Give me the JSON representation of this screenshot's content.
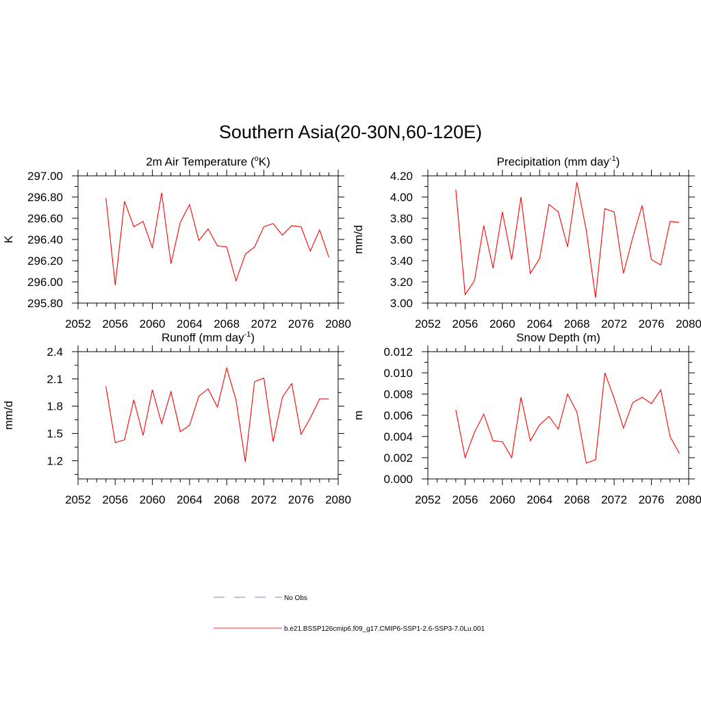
{
  "figure": {
    "title": "Southern Asia(20-30N,60-120E)"
  },
  "legend": {
    "entries": [
      {
        "label": "No Obs",
        "style": "dashed",
        "color": "#9999dd"
      },
      {
        "label": "b.e21.BSSP126cmip6.f09_g17.CMIP6-SSP1-2.6-SSP3-7.0Lu.001",
        "style": "solid",
        "color": "#ff3333"
      }
    ]
  },
  "chart_data": [
    {
      "type": "line",
      "title": "2m Air Temperature (°K)",
      "title_main": "2m Air Temperature (",
      "title_sup": "o",
      "title_end": "K)",
      "ylabel": "K",
      "xlim": [
        2052,
        2080
      ],
      "ylim": [
        295.8,
        297.0
      ],
      "xticks": [
        2052,
        2056,
        2060,
        2064,
        2068,
        2072,
        2076,
        2080
      ],
      "yticks": [
        295.8,
        296.0,
        296.2,
        296.4,
        296.6,
        296.8,
        297.0
      ],
      "ytick_labels": [
        "295.80",
        "296.00",
        "296.20",
        "296.40",
        "296.60",
        "296.80",
        "297.00"
      ],
      "series": [
        {
          "color": "#ff0000",
          "x": [
            2055,
            2056,
            2057,
            2058,
            2059,
            2060,
            2061,
            2062,
            2063,
            2064,
            2065,
            2066,
            2067,
            2068,
            2069,
            2070,
            2071,
            2072,
            2073,
            2074,
            2075,
            2076,
            2077,
            2078,
            2079
          ],
          "y": [
            296.79,
            295.97,
            296.76,
            296.52,
            296.57,
            296.32,
            296.84,
            296.17,
            296.56,
            296.73,
            296.39,
            296.5,
            296.34,
            296.33,
            296.01,
            296.26,
            296.33,
            296.52,
            296.55,
            296.44,
            296.53,
            296.52,
            296.29,
            296.49,
            296.23
          ]
        }
      ]
    },
    {
      "type": "line",
      "title": "Precipitation (mm day-1)",
      "title_main": "Precipitation (mm day",
      "title_sup": "-1",
      "title_end": ")",
      "ylabel": "mm/d",
      "xlim": [
        2052,
        2080
      ],
      "ylim": [
        3.0,
        4.2
      ],
      "xticks": [
        2052,
        2056,
        2060,
        2064,
        2068,
        2072,
        2076,
        2080
      ],
      "yticks": [
        3.0,
        3.2,
        3.4,
        3.6,
        3.8,
        4.0,
        4.2
      ],
      "ytick_labels": [
        "3.00",
        "3.20",
        "3.40",
        "3.60",
        "3.80",
        "4.00",
        "4.20"
      ],
      "series": [
        {
          "color": "#ff0000",
          "x": [
            2055,
            2056,
            2057,
            2058,
            2059,
            2060,
            2061,
            2062,
            2063,
            2064,
            2065,
            2066,
            2067,
            2068,
            2069,
            2070,
            2071,
            2072,
            2073,
            2074,
            2075,
            2076,
            2077,
            2078,
            2079
          ],
          "y": [
            4.07,
            3.08,
            3.21,
            3.73,
            3.33,
            3.86,
            3.41,
            4.0,
            3.28,
            3.42,
            3.93,
            3.86,
            3.53,
            4.14,
            3.69,
            3.05,
            3.89,
            3.86,
            3.28,
            3.62,
            3.92,
            3.41,
            3.36,
            3.77,
            3.76
          ]
        }
      ]
    },
    {
      "type": "line",
      "title": "Runoff (mm day-1)",
      "title_main": "Runoff (mm day",
      "title_sup": "-1",
      "title_end": ")",
      "ylabel": "mm/d",
      "xlim": [
        2052,
        2080
      ],
      "ylim": [
        1.0,
        2.4
      ],
      "xticks": [
        2052,
        2056,
        2060,
        2064,
        2068,
        2072,
        2076,
        2080
      ],
      "yticks": [
        1.2,
        1.5,
        1.8,
        2.1,
        2.4
      ],
      "ytick_labels": [
        "1.2",
        "1.5",
        "1.8",
        "2.1",
        "2.4"
      ],
      "series": [
        {
          "color": "#ff0000",
          "x": [
            2055,
            2056,
            2057,
            2058,
            2059,
            2060,
            2061,
            2062,
            2063,
            2064,
            2065,
            2066,
            2067,
            2068,
            2069,
            2070,
            2071,
            2072,
            2073,
            2074,
            2075,
            2076,
            2077,
            2078,
            2079
          ],
          "y": [
            2.02,
            1.4,
            1.43,
            1.87,
            1.48,
            1.98,
            1.61,
            1.96,
            1.52,
            1.59,
            1.91,
            1.99,
            1.79,
            2.22,
            1.87,
            1.19,
            2.07,
            2.11,
            1.41,
            1.9,
            2.05,
            1.49,
            1.67,
            1.88,
            1.88
          ]
        }
      ]
    },
    {
      "type": "line",
      "title": "Snow Depth (m)",
      "title_main": "Snow Depth (m)",
      "title_sup": "",
      "title_end": "",
      "ylabel": "m",
      "xlim": [
        2052,
        2080
      ],
      "ylim": [
        0.0,
        0.012
      ],
      "xticks": [
        2052,
        2056,
        2060,
        2064,
        2068,
        2072,
        2076,
        2080
      ],
      "yticks": [
        0.0,
        0.002,
        0.004,
        0.006,
        0.008,
        0.01,
        0.012
      ],
      "ytick_labels": [
        "0.000",
        "0.002",
        "0.004",
        "0.006",
        "0.008",
        "0.010",
        "0.012"
      ],
      "series": [
        {
          "color": "#ff0000",
          "x": [
            2055,
            2056,
            2057,
            2058,
            2059,
            2060,
            2061,
            2062,
            2063,
            2064,
            2065,
            2066,
            2067,
            2068,
            2069,
            2070,
            2071,
            2072,
            2073,
            2074,
            2075,
            2076,
            2077,
            2078,
            2079
          ],
          "y": [
            0.0065,
            0.002,
            0.0044,
            0.0061,
            0.0036,
            0.0035,
            0.002,
            0.0077,
            0.0036,
            0.0051,
            0.0059,
            0.0047,
            0.008,
            0.0063,
            0.0015,
            0.0018,
            0.01,
            0.0076,
            0.0048,
            0.0072,
            0.0077,
            0.0071,
            0.0084,
            0.004,
            0.0024
          ]
        }
      ]
    }
  ]
}
